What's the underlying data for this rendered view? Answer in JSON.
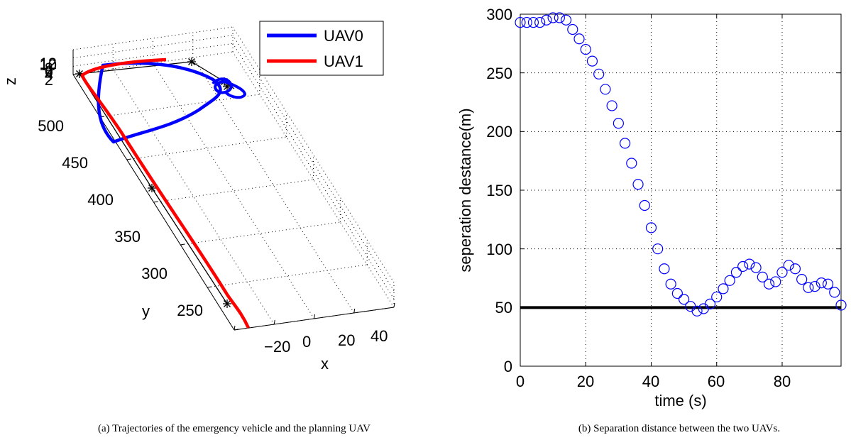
{
  "chart_data": [
    {
      "type": "line",
      "caption": "(a)  Trajectories of the emergency vehicle and the planning UAV",
      "xlabel": "x",
      "ylabel": "y",
      "zlabel": "z",
      "x_ticks": [
        "−20",
        "0",
        "20",
        "40"
      ],
      "y_ticks": [
        "250",
        "300",
        "350",
        "400",
        "450",
        "500"
      ],
      "z_ticks": [
        "2",
        "4",
        "6",
        "8",
        "10",
        "12"
      ],
      "grid": true,
      "legend_position": "top-right",
      "colors": {
        "UAV0": "#0000ff",
        "UAV1": "#ff0000",
        "reference": "#000000"
      },
      "legend": [
        "UAV0",
        "UAV1"
      ]
    },
    {
      "type": "scatter",
      "caption": "(b)  Separation distance between the two UAVs.",
      "xlabel": "time (s)",
      "ylabel": "seperation destance(m)",
      "xlim": [
        0,
        98
      ],
      "ylim": [
        0,
        300
      ],
      "x_ticks": [
        "0",
        "20",
        "40",
        "60",
        "80"
      ],
      "y_ticks": [
        "0",
        "50",
        "100",
        "150",
        "200",
        "250",
        "300"
      ],
      "grid": true,
      "marker": "circle",
      "marker_color": "#0000ff",
      "threshold": {
        "y": 50,
        "color": "#000000"
      },
      "series": [
        {
          "x": [
            0,
            2,
            4,
            6,
            8,
            10,
            12,
            14,
            16,
            18,
            20,
            22,
            24,
            26,
            28,
            30,
            32,
            34,
            36,
            38,
            40,
            42,
            44,
            46,
            48,
            50,
            52,
            54,
            56,
            58,
            60,
            62,
            64,
            66,
            68,
            70,
            72,
            74,
            76,
            78,
            80,
            82,
            84,
            86,
            88,
            90,
            92,
            94,
            96,
            98
          ],
          "y": [
            293,
            293,
            293,
            293,
            295,
            297,
            297,
            295,
            287,
            279,
            270,
            260,
            249,
            236,
            222,
            207,
            190,
            173,
            155,
            137,
            118,
            100,
            83,
            70,
            62,
            57,
            51,
            47,
            49,
            53,
            59,
            66,
            73,
            80,
            85,
            87,
            84,
            76,
            70,
            72,
            80,
            86,
            83,
            74,
            67,
            68,
            71,
            70,
            63,
            52
          ]
        }
      ]
    }
  ]
}
